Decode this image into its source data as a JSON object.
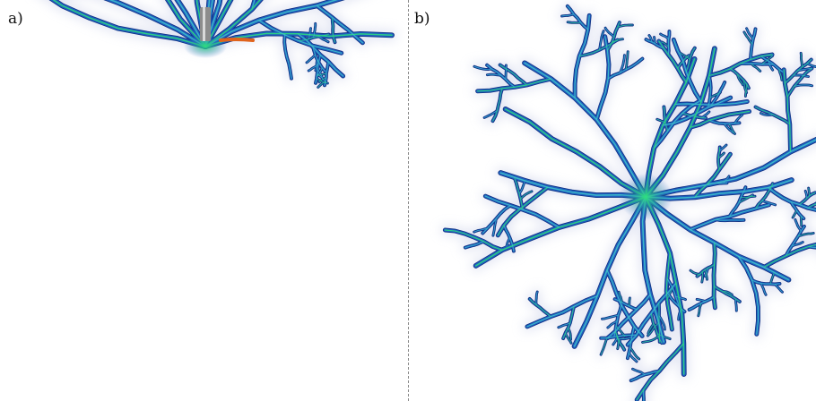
{
  "panels": [
    {
      "id": "a",
      "label": "a)",
      "view": "side-view"
    },
    {
      "id": "b",
      "label": "b)",
      "view": "top-view"
    }
  ],
  "colors": {
    "root_base": "#1f5fbf",
    "root_dark": "#0e2f80",
    "root_highlight": "#3fc7c9",
    "root_tip": "#2ee07a",
    "hotspot": "#e0631c",
    "halo": "#c9cfe8",
    "tube": "#8c8c8c",
    "divider": "#8a8a8a"
  },
  "icons": {
    "stem": "stem-tube-icon"
  }
}
